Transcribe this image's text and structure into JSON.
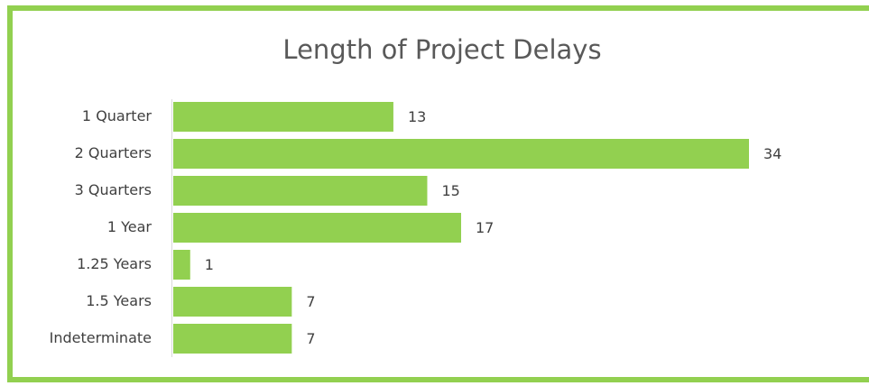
{
  "chart_data": {
    "type": "bar",
    "orientation": "horizontal",
    "title": "Length of Project Delays",
    "categories": [
      "1 Quarter",
      "2 Quarters",
      "3 Quarters",
      "1 Year",
      "1.25 Years",
      "1.5 Years",
      "Indeterminate"
    ],
    "values": [
      13,
      34,
      15,
      17,
      1,
      7,
      7
    ],
    "color": "#92d050"
  }
}
